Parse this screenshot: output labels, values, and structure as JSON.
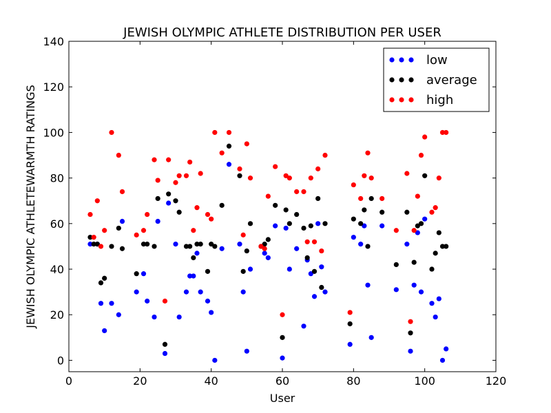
{
  "chart_data": {
    "type": "scatter",
    "title": "JEWISH OLYMPIC ATHLETE DISTRIBUTION PER USER",
    "xlabel": "User",
    "ylabel": "JEWISH OLYMPIC ATHLETEWARMTH RATINGS",
    "xlim": [
      0,
      120
    ],
    "ylim": [
      -5,
      140
    ],
    "xticks": [
      0,
      20,
      40,
      60,
      80,
      100,
      120
    ],
    "yticks": [
      0,
      20,
      40,
      60,
      80,
      100,
      120,
      140
    ],
    "grid": false,
    "legend_position": "top-right",
    "series": [
      {
        "name": "low",
        "color": "#0000ff",
        "x": [
          6,
          8,
          9,
          10,
          12,
          14,
          15,
          19,
          21,
          22,
          24,
          25,
          27,
          28,
          30,
          31,
          33,
          34,
          35,
          36,
          37,
          39,
          40,
          41,
          43,
          45,
          48,
          49,
          50,
          51,
          55,
          56,
          58,
          60,
          61,
          62,
          64,
          66,
          67,
          68,
          69,
          70,
          71,
          72,
          79,
          80,
          82,
          83,
          84,
          85,
          88,
          92,
          95,
          96,
          97,
          98,
          99,
          100,
          102,
          103,
          104,
          105,
          106
        ],
        "y": [
          51,
          51,
          25,
          13,
          25,
          20,
          61,
          30,
          38,
          26,
          19,
          61,
          3,
          69,
          51,
          19,
          30,
          37,
          37,
          47,
          30,
          26,
          21,
          0,
          49,
          86,
          51,
          30,
          4,
          40,
          47,
          45,
          59,
          1,
          58,
          40,
          49,
          15,
          44,
          38,
          28,
          60,
          41,
          30,
          7,
          54,
          51,
          59,
          33,
          10,
          59,
          31,
          51,
          4,
          33,
          56,
          30,
          62,
          25,
          19,
          27,
          0,
          5
        ]
      },
      {
        "name": "average",
        "color": "#000000",
        "x": [
          6,
          7,
          8,
          9,
          10,
          12,
          14,
          15,
          19,
          21,
          22,
          24,
          25,
          27,
          28,
          30,
          31,
          33,
          34,
          35,
          36,
          37,
          39,
          40,
          41,
          43,
          45,
          48,
          49,
          50,
          51,
          54,
          55,
          56,
          58,
          60,
          61,
          62,
          64,
          66,
          67,
          68,
          69,
          70,
          71,
          72,
          79,
          80,
          82,
          83,
          84,
          85,
          88,
          92,
          95,
          96,
          97,
          98,
          99,
          100,
          102,
          103,
          104,
          105,
          106
        ],
        "y": [
          54,
          51,
          51,
          34,
          36,
          50,
          58,
          49,
          38,
          51,
          51,
          50,
          71,
          7,
          73,
          70,
          65,
          50,
          50,
          45,
          51,
          51,
          39,
          51,
          50,
          68,
          94,
          81,
          39,
          48,
          60,
          50,
          51,
          53,
          68,
          10,
          66,
          60,
          64,
          58,
          45,
          59,
          39,
          71,
          32,
          60,
          16,
          62,
          60,
          66,
          50,
          71,
          65,
          42,
          65,
          12,
          43,
          59,
          60,
          81,
          40,
          47,
          56,
          50,
          50
        ]
      },
      {
        "name": "high",
        "color": "#ff0000",
        "x": [
          6,
          7,
          8,
          9,
          10,
          12,
          14,
          15,
          19,
          21,
          22,
          24,
          25,
          27,
          28,
          30,
          31,
          33,
          34,
          35,
          36,
          37,
          39,
          40,
          41,
          43,
          45,
          48,
          49,
          50,
          51,
          54,
          55,
          56,
          58,
          60,
          61,
          62,
          64,
          66,
          67,
          68,
          69,
          70,
          71,
          72,
          79,
          80,
          82,
          83,
          84,
          85,
          88,
          92,
          95,
          96,
          97,
          98,
          99,
          100,
          102,
          103,
          104,
          105,
          106
        ],
        "y": [
          64,
          54,
          70,
          50,
          57,
          100,
          90,
          74,
          55,
          57,
          64,
          88,
          79,
          26,
          88,
          78,
          81,
          81,
          87,
          57,
          67,
          82,
          64,
          62,
          100,
          91,
          100,
          84,
          55,
          95,
          80,
          50,
          49,
          72,
          85,
          20,
          81,
          80,
          74,
          74,
          52,
          80,
          52,
          84,
          48,
          90,
          21,
          77,
          71,
          81,
          91,
          80,
          71,
          57,
          82,
          17,
          57,
          72,
          90,
          98,
          65,
          67,
          80,
          100,
          100
        ]
      }
    ]
  }
}
